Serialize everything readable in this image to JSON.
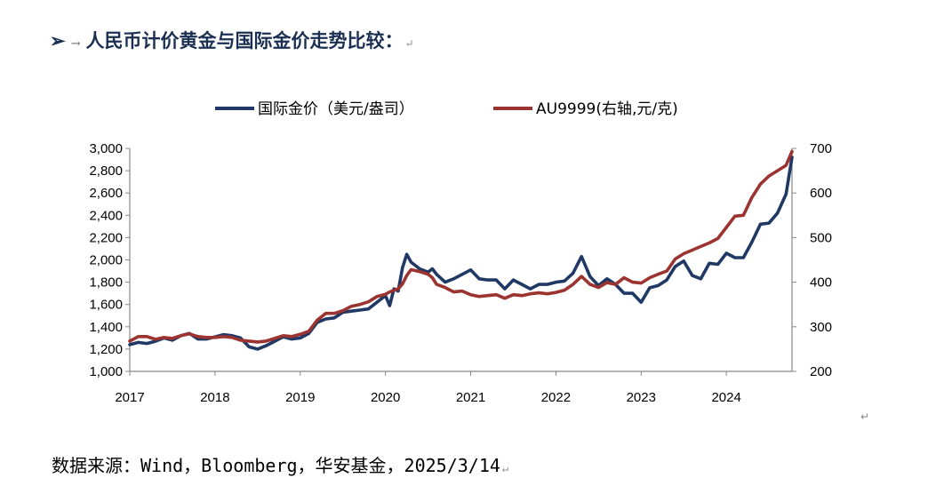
{
  "heading": {
    "arrow": "➢",
    "sep": "→",
    "text": "人民币计价黄金与国际金价走势比较：",
    "mark": "↵"
  },
  "source": {
    "text": "数据来源：Wind，Bloomberg，华安基金，2025/3/14",
    "mark": "↵"
  },
  "stray_mark": "↵",
  "colors": {
    "intl": "#1f3864",
    "au9999": "#9b3430"
  },
  "chart_data": {
    "type": "line",
    "x_axis": {
      "ticks": [
        "2017",
        "2018",
        "2019",
        "2020",
        "2021",
        "2022",
        "2023",
        "2024"
      ],
      "range": [
        2017,
        2024.77
      ]
    },
    "y_left": {
      "ticks": [
        "3,000",
        "2,800",
        "2,600",
        "2,400",
        "2,200",
        "2,000",
        "1,800",
        "1,600",
        "1,400",
        "1,200",
        "1,000"
      ],
      "range": [
        1000,
        3000
      ]
    },
    "y_right": {
      "ticks": [
        "700",
        "600",
        "500",
        "400",
        "300",
        "200"
      ],
      "range": [
        200,
        700
      ]
    },
    "grid": false,
    "legend_position": "top-center",
    "series": [
      {
        "name": "国际金价（美元/盎司）",
        "axis": "left",
        "color": "#1f3864",
        "x": [
          2017.0,
          2017.1,
          2017.2,
          2017.3,
          2017.4,
          2017.5,
          2017.6,
          2017.7,
          2017.8,
          2017.9,
          2018.0,
          2018.1,
          2018.2,
          2018.3,
          2018.4,
          2018.5,
          2018.6,
          2018.7,
          2018.8,
          2018.9,
          2019.0,
          2019.1,
          2019.2,
          2019.3,
          2019.4,
          2019.5,
          2019.6,
          2019.7,
          2019.8,
          2019.9,
          2020.0,
          2020.05,
          2020.1,
          2020.15,
          2020.2,
          2020.25,
          2020.3,
          2020.4,
          2020.5,
          2020.55,
          2020.6,
          2020.7,
          2020.8,
          2020.9,
          2021.0,
          2021.1,
          2021.2,
          2021.3,
          2021.4,
          2021.5,
          2021.6,
          2021.7,
          2021.8,
          2021.9,
          2022.0,
          2022.1,
          2022.2,
          2022.3,
          2022.4,
          2022.5,
          2022.6,
          2022.7,
          2022.8,
          2022.9,
          2023.0,
          2023.1,
          2023.2,
          2023.3,
          2023.4,
          2023.5,
          2023.6,
          2023.7,
          2023.8,
          2023.9,
          2024.0,
          2024.1,
          2024.2,
          2024.3,
          2024.4,
          2024.5,
          2024.6,
          2024.7,
          2024.77
        ],
        "y": [
          1240,
          1260,
          1250,
          1270,
          1300,
          1280,
          1320,
          1340,
          1290,
          1290,
          1310,
          1330,
          1320,
          1300,
          1220,
          1200,
          1230,
          1270,
          1310,
          1290,
          1300,
          1340,
          1440,
          1470,
          1480,
          1530,
          1540,
          1550,
          1560,
          1620,
          1680,
          1590,
          1740,
          1720,
          1930,
          2050,
          1980,
          1920,
          1890,
          1920,
          1870,
          1800,
          1830,
          1870,
          1910,
          1830,
          1820,
          1820,
          1740,
          1820,
          1780,
          1740,
          1780,
          1780,
          1800,
          1810,
          1880,
          2030,
          1850,
          1770,
          1830,
          1780,
          1700,
          1700,
          1620,
          1750,
          1770,
          1820,
          1940,
          1990,
          1860,
          1830,
          1970,
          1960,
          2060,
          2020,
          2020,
          2160,
          2320,
          2330,
          2420,
          2590,
          2920
        ]
      },
      {
        "name": "AU9999(右轴,元/克)",
        "axis": "right",
        "color": "#9b3430",
        "x": [
          2017.0,
          2017.1,
          2017.2,
          2017.3,
          2017.4,
          2017.5,
          2017.6,
          2017.7,
          2017.8,
          2017.9,
          2018.0,
          2018.1,
          2018.2,
          2018.3,
          2018.4,
          2018.5,
          2018.6,
          2018.7,
          2018.8,
          2018.9,
          2019.0,
          2019.1,
          2019.2,
          2019.3,
          2019.4,
          2019.5,
          2019.6,
          2019.7,
          2019.8,
          2019.9,
          2020.0,
          2020.05,
          2020.1,
          2020.15,
          2020.2,
          2020.25,
          2020.3,
          2020.4,
          2020.5,
          2020.55,
          2020.6,
          2020.7,
          2020.8,
          2020.9,
          2021.0,
          2021.1,
          2021.2,
          2021.3,
          2021.4,
          2021.5,
          2021.6,
          2021.7,
          2021.8,
          2021.9,
          2022.0,
          2022.1,
          2022.2,
          2022.3,
          2022.4,
          2022.5,
          2022.6,
          2022.7,
          2022.8,
          2022.9,
          2023.0,
          2023.1,
          2023.2,
          2023.3,
          2023.4,
          2023.5,
          2023.6,
          2023.7,
          2023.8,
          2023.9,
          2024.0,
          2024.1,
          2024.2,
          2024.3,
          2024.4,
          2024.5,
          2024.6,
          2024.7,
          2024.77
        ],
        "y": [
          268,
          278,
          278,
          272,
          276,
          274,
          280,
          284,
          278,
          276,
          276,
          278,
          276,
          270,
          268,
          266,
          268,
          274,
          280,
          278,
          283,
          290,
          315,
          330,
          330,
          336,
          346,
          350,
          356,
          368,
          373,
          378,
          382,
          385,
          396,
          415,
          428,
          424,
          418,
          410,
          395,
          388,
          378,
          380,
          372,
          368,
          370,
          372,
          364,
          372,
          370,
          374,
          376,
          374,
          377,
          382,
          395,
          413,
          395,
          388,
          399,
          395,
          410,
          400,
          398,
          410,
          418,
          425,
          452,
          464,
          472,
          480,
          488,
          498,
          523,
          548,
          550,
          590,
          620,
          638,
          650,
          662,
          693
        ]
      }
    ]
  }
}
